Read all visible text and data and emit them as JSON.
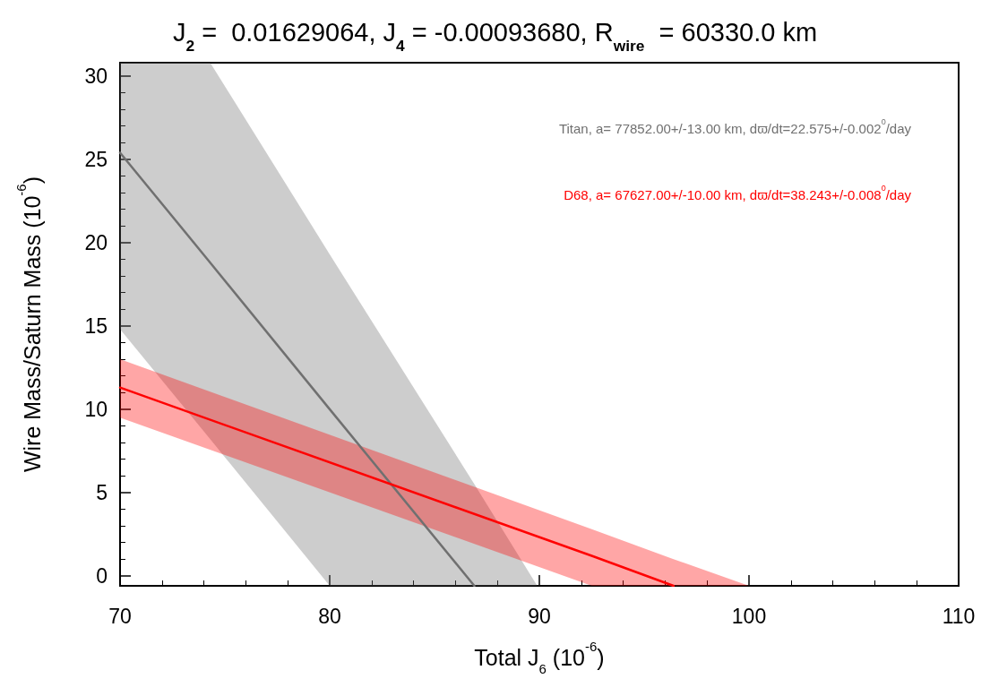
{
  "chart_data": {
    "type": "line",
    "title": "J$_{2}$ =  0.01629064, J$_{4}$ = -0.00093680, R$_{wire}$  = 60330.0 km",
    "xlabel": "Total J$_{6}$ (10$^{-6}$)",
    "ylabel": "Wire Mass/Saturn Mass (10$^{-6}$)",
    "series": [
      {
        "name": "Titan, a= 77852.00+/-13.00 km, dϖ/dt=22.575+/-0.002$^{0}$/day",
        "color": "#707070",
        "x": [
          70,
          74.3,
          80,
          86.9,
          89.9
        ],
        "values": [
          25.4,
          18.8,
          10.0,
          -0.6,
          null
        ],
        "upper": [
          30.8,
          30.8,
          19.3,
          5.5,
          -0.6
        ],
        "lower": [
          14.8,
          8.2,
          -0.6,
          -0.6,
          -0.6
        ]
      },
      {
        "name": "D68, a= 67627.00+/-10.00 km, dϖ/dt=38.243+/-0.008$^{0}$/day",
        "color": "#ff0000",
        "x": [
          70,
          92.5,
          96.4,
          100
        ],
        "values": [
          11.3,
          1.2,
          -0.6,
          null
        ],
        "upper": [
          13.0,
          2.8,
          1.0,
          -0.6
        ],
        "lower": [
          9.5,
          -0.6,
          -0.6,
          -0.6
        ]
      }
    ],
    "xlim": [
      70,
      110
    ],
    "xticks": [
      70,
      80,
      90,
      100,
      110
    ],
    "ylim": [
      -0.6,
      30.8
    ],
    "yticks": [
      0,
      5,
      10,
      15,
      20,
      25,
      30
    ],
    "grid": false,
    "marker": "none",
    "line_style": "solid"
  }
}
